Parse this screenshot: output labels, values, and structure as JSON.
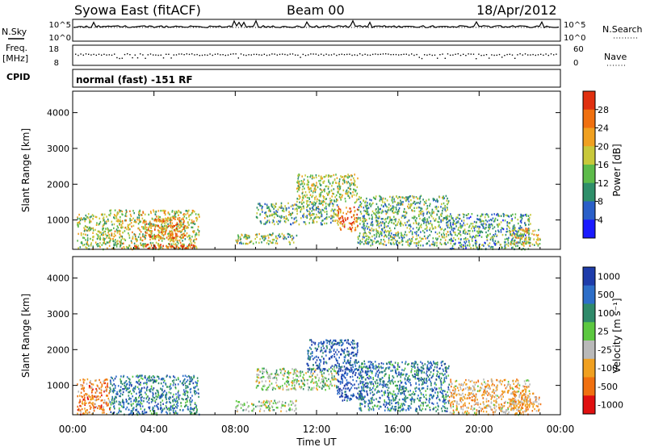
{
  "header": {
    "station": "Syowa East (fitACF)",
    "beam": "Beam 00",
    "date": "18/Apr/2012"
  },
  "summary_panels": {
    "nsky": {
      "left_label": "N.Sky",
      "right_label": "N.Search",
      "left_ticks": [
        "10^5",
        "10^0"
      ],
      "right_ticks": [
        "10^5",
        "10^0"
      ]
    },
    "freq": {
      "left_label_top": "Freq.",
      "left_label_unit": "[MHz]",
      "right_label": "Nave",
      "left_ticks": [
        "18",
        "8"
      ],
      "right_ticks": [
        "60",
        "0"
      ]
    },
    "cpid": {
      "left_label": "CPID",
      "text": "normal (fast) -151 RF"
    }
  },
  "chart_data": [
    {
      "type": "heatmap",
      "panel": "power",
      "ylabel": "Slant Range [km]",
      "ylim": [
        180,
        4600
      ],
      "yticks": [
        1000,
        2000,
        3000,
        4000
      ],
      "ytick_labels": [
        "1000",
        "2000",
        "3000",
        "4000"
      ],
      "xlim_hours": [
        0,
        24
      ],
      "colorbar": {
        "label": "Power [dB]",
        "range": [
          0,
          32
        ],
        "tick_values": [
          4,
          8,
          12,
          16,
          20,
          24,
          28
        ],
        "tick_labels": [
          "4",
          "8",
          "12",
          "16",
          "20",
          "24",
          "28"
        ],
        "colors": [
          "#1a1aff",
          "#2a5fc8",
          "#2f8f6a",
          "#5dbb4a",
          "#c8c83a",
          "#f0a020",
          "#f07010",
          "#e03010"
        ]
      },
      "echo_regions": [
        {
          "t": [
            0.2,
            1.8
          ],
          "r": [
            200,
            1200
          ],
          "level": 0.5
        },
        {
          "t": [
            1.8,
            6.2
          ],
          "r": [
            200,
            1300
          ],
          "level": 0.55
        },
        {
          "t": [
            2.8,
            6.0
          ],
          "r": [
            220,
            350
          ],
          "level": 0.95
        },
        {
          "t": [
            3.5,
            5.5
          ],
          "r": [
            500,
            1100
          ],
          "level": 0.75
        },
        {
          "t": [
            8.0,
            11.0
          ],
          "r": [
            350,
            650
          ],
          "level": 0.45
        },
        {
          "t": [
            9.0,
            13.0
          ],
          "r": [
            900,
            1500
          ],
          "level": 0.4
        },
        {
          "t": [
            11.0,
            14.0
          ],
          "r": [
            1500,
            2300
          ],
          "level": 0.5
        },
        {
          "t": [
            13.0,
            14.0
          ],
          "r": [
            700,
            1400
          ],
          "level": 0.8
        },
        {
          "t": [
            14.0,
            18.5
          ],
          "r": [
            300,
            1700
          ],
          "level": 0.4
        },
        {
          "t": [
            18.5,
            22.5
          ],
          "r": [
            200,
            1200
          ],
          "level": 0.35
        },
        {
          "t": [
            21.5,
            23.0
          ],
          "r": [
            300,
            800
          ],
          "level": 0.55
        }
      ]
    },
    {
      "type": "heatmap",
      "panel": "velocity",
      "ylabel": "Slant Range [km]",
      "ylim": [
        180,
        4600
      ],
      "yticks": [
        1000,
        2000,
        3000,
        4000
      ],
      "ytick_labels": [
        "1000",
        "2000",
        "3000",
        "4000"
      ],
      "xlim_hours": [
        0,
        24
      ],
      "xticks_hours": [
        0,
        4,
        8,
        12,
        16,
        20,
        24
      ],
      "xtick_labels": [
        "00:00",
        "04:00",
        "08:00",
        "12:00",
        "16:00",
        "20:00",
        "00:00"
      ],
      "xlabel": "Time UT",
      "colorbar": {
        "label": "Velocity [m s⁻¹]",
        "tick_labels": [
          "1000",
          "500",
          "100",
          "25",
          "-25",
          "-100",
          "-500",
          "-1000"
        ],
        "colors": [
          "#1e3caa",
          "#2d6ec8",
          "#2f8a6a",
          "#5cc840",
          "#b9b9b9",
          "#f0a020",
          "#f07010",
          "#e01010"
        ]
      },
      "echo_regions": [
        {
          "t": [
            0.2,
            1.8
          ],
          "r": [
            200,
            1200
          ],
          "level": 0.25
        },
        {
          "t": [
            1.8,
            6.2
          ],
          "r": [
            200,
            1300
          ],
          "level": 0.75
        },
        {
          "t": [
            8.0,
            11.0
          ],
          "r": [
            300,
            600
          ],
          "level": 0.5
        },
        {
          "t": [
            9.0,
            13.0
          ],
          "r": [
            900,
            1500
          ],
          "level": 0.5
        },
        {
          "t": [
            11.5,
            14.0
          ],
          "r": [
            1400,
            2300
          ],
          "level": 0.85
        },
        {
          "t": [
            13.0,
            14.5
          ],
          "r": [
            600,
            1500
          ],
          "level": 0.9
        },
        {
          "t": [
            14.0,
            18.5
          ],
          "r": [
            300,
            1700
          ],
          "level": 0.75
        },
        {
          "t": [
            18.5,
            22.5
          ],
          "r": [
            200,
            1200
          ],
          "level": 0.35
        },
        {
          "t": [
            21.5,
            23.0
          ],
          "r": [
            300,
            800
          ],
          "level": 0.3
        }
      ]
    }
  ]
}
